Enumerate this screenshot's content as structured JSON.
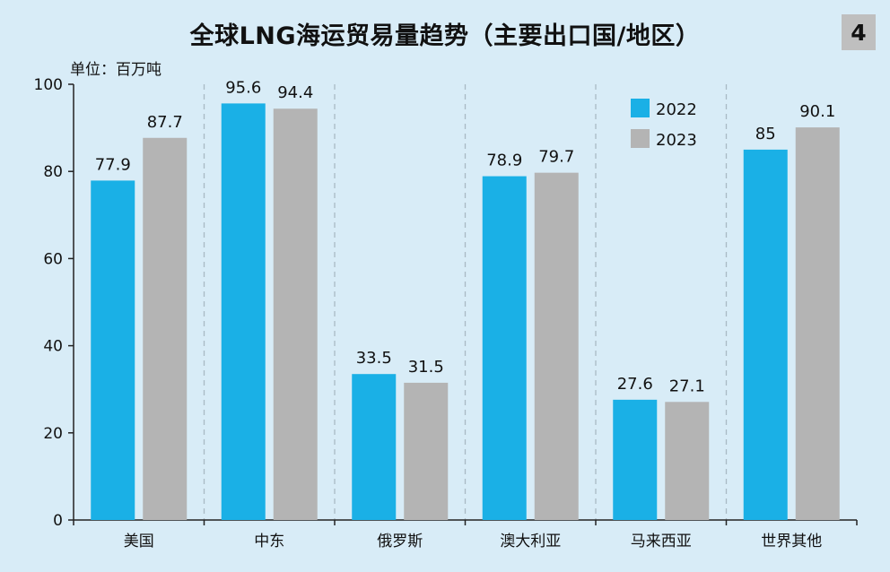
{
  "title": "全球LNG海运贸易量趋势（主要出口国/地区）",
  "page_number": "4",
  "unit": "单位：百万吨",
  "colors": {
    "background": "#d8ecf7",
    "s2022": "#1ab0e6",
    "s2023": "#b4b4b4"
  },
  "chart_data": {
    "type": "bar",
    "title": "全球LNG海运贸易量趋势（主要出口国/地区）",
    "ylabel": "单位：百万吨",
    "ylim": [
      0,
      100
    ],
    "yticks": [
      0,
      20,
      40,
      60,
      80,
      100
    ],
    "categories": [
      "美国",
      "中东",
      "俄罗斯",
      "澳大利亚",
      "马来西亚",
      "世界其他"
    ],
    "series": [
      {
        "name": "2022",
        "values": [
          77.9,
          95.6,
          33.5,
          78.9,
          27.6,
          85
        ]
      },
      {
        "name": "2023",
        "values": [
          87.7,
          94.4,
          31.5,
          79.7,
          27.1,
          90.1
        ]
      }
    ],
    "legend_position": "top-right",
    "grid": false
  }
}
